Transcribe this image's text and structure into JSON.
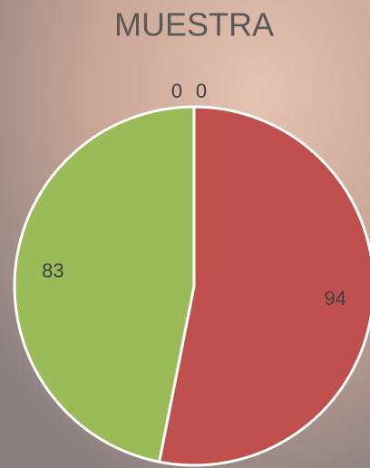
{
  "chart_data": {
    "type": "pie",
    "title": "MUESTRA",
    "values": [
      0,
      0,
      94,
      83
    ],
    "colors": [
      "#4f81bd",
      "#8064a2",
      "#c0504d",
      "#9bbb59"
    ]
  }
}
